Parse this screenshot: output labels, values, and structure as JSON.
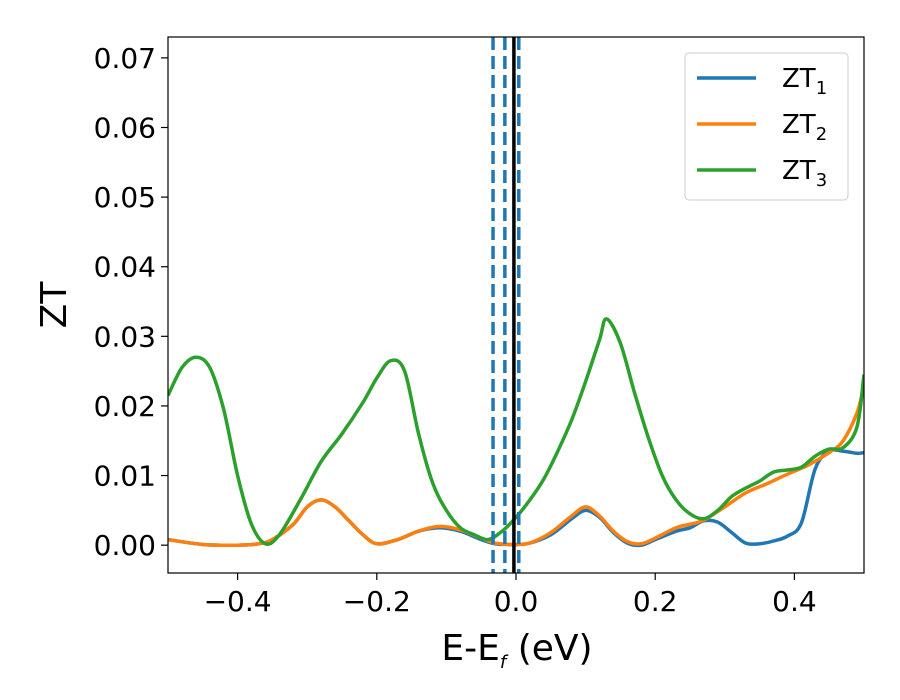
{
  "chart_data": {
    "type": "line",
    "xlabel_main": "E-E",
    "xlabel_sub": "f",
    "xlabel_unit": " (eV)",
    "ylabel": "ZT",
    "xlim": [
      -0.5,
      0.5
    ],
    "ylim": [
      -0.004,
      0.073
    ],
    "xticks": [
      -0.4,
      -0.2,
      0.0,
      0.2,
      0.4
    ],
    "xtick_labels": [
      "−0.4",
      "−0.2",
      "0.0",
      "0.2",
      "0.4"
    ],
    "yticks": [
      0.0,
      0.01,
      0.02,
      0.03,
      0.04,
      0.05,
      0.06,
      0.07
    ],
    "ytick_labels": [
      "0.00",
      "0.01",
      "0.02",
      "0.03",
      "0.04",
      "0.05",
      "0.06",
      "0.07"
    ],
    "grid": false,
    "legend_position": "top-right",
    "series": [
      {
        "name_main": "ZT",
        "name_sub": "1",
        "color": "#1f77b4",
        "x": [
          -0.5,
          -0.45,
          -0.4,
          -0.37,
          -0.35,
          -0.32,
          -0.3,
          -0.28,
          -0.26,
          -0.24,
          -0.22,
          -0.2,
          -0.17,
          -0.14,
          -0.11,
          -0.08,
          -0.05,
          -0.03,
          -0.01,
          0.0,
          0.02,
          0.05,
          0.08,
          0.1,
          0.12,
          0.14,
          0.16,
          0.18,
          0.2,
          0.23,
          0.25,
          0.27,
          0.29,
          0.31,
          0.33,
          0.35,
          0.37,
          0.39,
          0.41,
          0.43,
          0.45,
          0.47,
          0.49,
          0.5
        ],
        "y": [
          0.0008,
          0.0001,
          0.0,
          0.0002,
          0.0008,
          0.003,
          0.0055,
          0.0065,
          0.0055,
          0.0035,
          0.0015,
          0.0002,
          0.0008,
          0.002,
          0.0025,
          0.002,
          0.0008,
          0.0002,
          0.0001,
          0.0001,
          0.0003,
          0.0015,
          0.0038,
          0.005,
          0.004,
          0.0018,
          0.0003,
          0.0,
          0.0008,
          0.002,
          0.0025,
          0.0035,
          0.0033,
          0.0018,
          0.0003,
          0.0002,
          0.0006,
          0.0013,
          0.0032,
          0.011,
          0.0135,
          0.0135,
          0.0132,
          0.0133
        ]
      },
      {
        "name_main": "ZT",
        "name_sub": "2",
        "color": "#ff7f0e",
        "x": [
          -0.5,
          -0.45,
          -0.4,
          -0.37,
          -0.35,
          -0.32,
          -0.3,
          -0.28,
          -0.26,
          -0.24,
          -0.22,
          -0.2,
          -0.17,
          -0.14,
          -0.11,
          -0.08,
          -0.05,
          -0.03,
          -0.01,
          0.0,
          0.02,
          0.05,
          0.08,
          0.1,
          0.12,
          0.14,
          0.16,
          0.18,
          0.2,
          0.23,
          0.25,
          0.27,
          0.3,
          0.33,
          0.36,
          0.39,
          0.42,
          0.45,
          0.47,
          0.49,
          0.5
        ],
        "y": [
          0.0008,
          0.0001,
          0.0,
          0.0002,
          0.0008,
          0.003,
          0.0055,
          0.0065,
          0.0055,
          0.0035,
          0.0015,
          0.0002,
          0.0008,
          0.002,
          0.0027,
          0.0022,
          0.001,
          0.0003,
          0.0001,
          0.0001,
          0.0003,
          0.0018,
          0.0042,
          0.0055,
          0.0042,
          0.002,
          0.0005,
          0.0002,
          0.001,
          0.0025,
          0.003,
          0.0036,
          0.0055,
          0.0075,
          0.0088,
          0.0102,
          0.0115,
          0.0133,
          0.015,
          0.019,
          0.023
        ]
      },
      {
        "name_main": "ZT",
        "name_sub": "3",
        "color": "#2ca02c",
        "x": [
          -0.5,
          -0.48,
          -0.46,
          -0.44,
          -0.42,
          -0.4,
          -0.38,
          -0.36,
          -0.34,
          -0.31,
          -0.28,
          -0.25,
          -0.22,
          -0.2,
          -0.18,
          -0.16,
          -0.14,
          -0.12,
          -0.1,
          -0.08,
          -0.06,
          -0.04,
          -0.02,
          0.0,
          0.02,
          0.04,
          0.06,
          0.08,
          0.1,
          0.12,
          0.13,
          0.15,
          0.17,
          0.19,
          0.21,
          0.23,
          0.25,
          0.27,
          0.29,
          0.31,
          0.33,
          0.35,
          0.37,
          0.39,
          0.41,
          0.43,
          0.45,
          0.47,
          0.49,
          0.5
        ],
        "y": [
          0.0215,
          0.0255,
          0.027,
          0.0255,
          0.0195,
          0.01,
          0.003,
          0.0002,
          0.0015,
          0.0065,
          0.012,
          0.016,
          0.0205,
          0.024,
          0.0265,
          0.025,
          0.016,
          0.009,
          0.005,
          0.0025,
          0.0015,
          0.0008,
          0.002,
          0.004,
          0.0065,
          0.0095,
          0.0135,
          0.018,
          0.0235,
          0.0295,
          0.0325,
          0.029,
          0.022,
          0.0155,
          0.01,
          0.0065,
          0.0045,
          0.0038,
          0.005,
          0.007,
          0.0082,
          0.0092,
          0.0105,
          0.0108,
          0.0112,
          0.0128,
          0.0138,
          0.014,
          0.017,
          0.0245
        ]
      }
    ],
    "vlines": [
      {
        "x": -0.033,
        "style": "dashed",
        "color": "#1f77b4"
      },
      {
        "x": -0.016,
        "style": "dashed",
        "color": "#1f77b4"
      },
      {
        "x": -0.003,
        "style": "solid",
        "color": "#000000"
      },
      {
        "x": 0.004,
        "style": "dashed",
        "color": "#1f77b4"
      }
    ]
  }
}
